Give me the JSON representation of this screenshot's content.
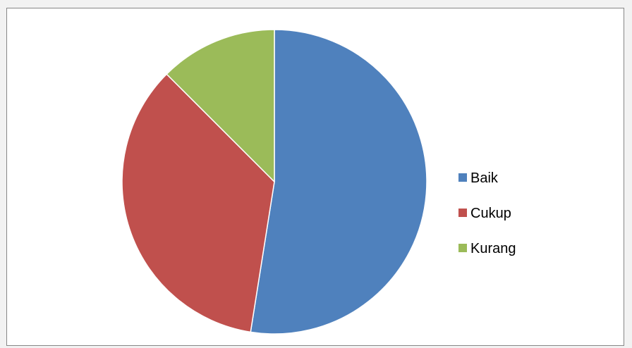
{
  "chart_data": {
    "type": "pie",
    "title": "",
    "slices": [
      {
        "label": "Baik",
        "value": 52.5,
        "color": "#4F81BD"
      },
      {
        "label": "Cukup",
        "value": 35.0,
        "color": "#C0504D"
      },
      {
        "label": "Kurang",
        "value": 12.5,
        "color": "#9BBB59"
      }
    ],
    "start_angle_deg": 0,
    "direction": "clockwise",
    "legend": {
      "position": "right",
      "entries": [
        "Baik",
        "Cukup",
        "Kurang"
      ]
    }
  }
}
